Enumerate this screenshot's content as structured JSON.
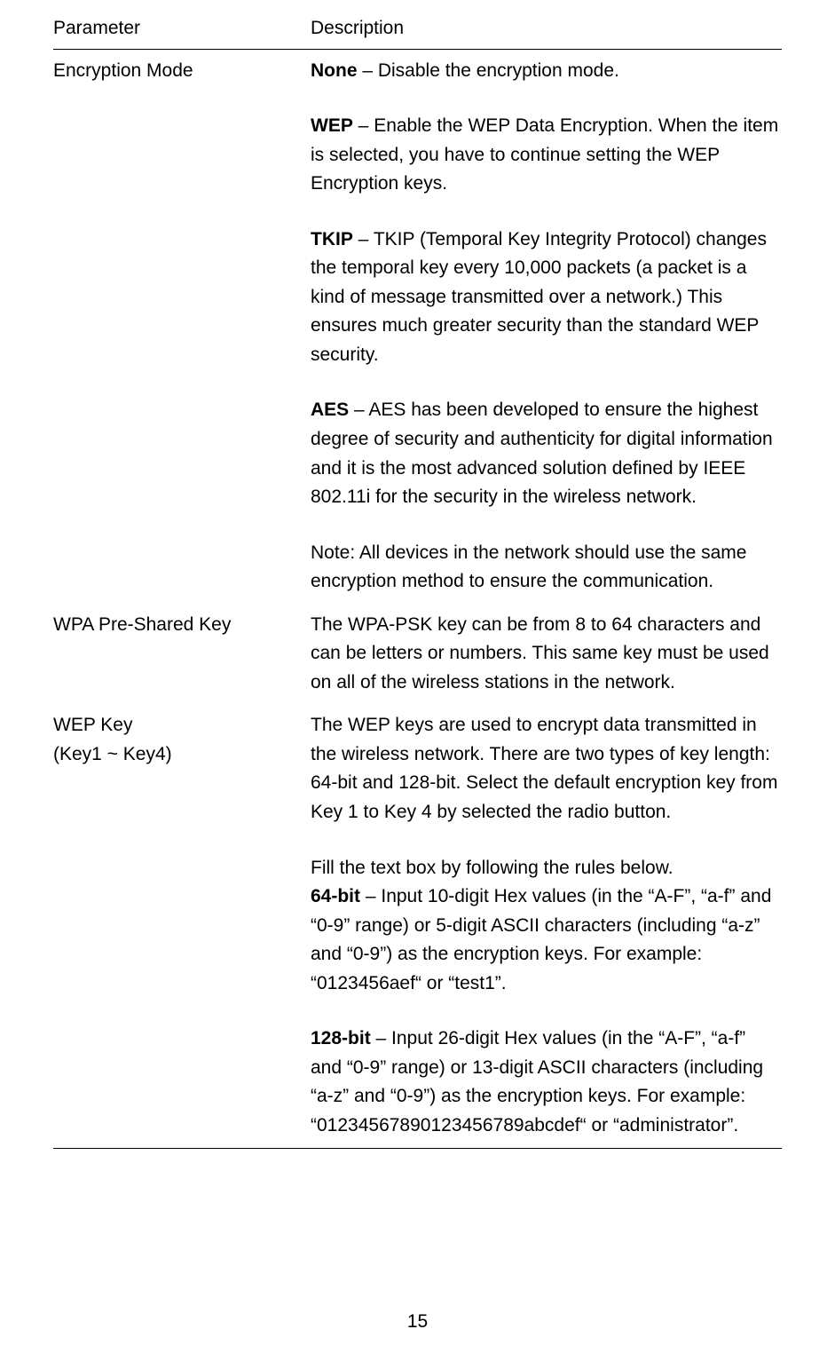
{
  "page_number": "15",
  "columns": {
    "parameter": "Parameter",
    "description": "Description"
  },
  "rows": [
    {
      "param_lines": [
        "Encryption Mode"
      ],
      "desc": [
        {
          "bold": "None",
          "rest": " – Disable the encryption mode."
        },
        {
          "bold": "WEP",
          "rest": " – Enable the WEP Data Encryption. When the item is selected, you have to continue setting the WEP Encryption keys."
        },
        {
          "bold": "TKIP",
          "rest": " – TKIP (Temporal Key Integrity Protocol) changes the temporal key every 10,000 packets (a packet is a kind of message transmitted over a network.) This ensures much greater security than the standard WEP security."
        },
        {
          "bold": "AES",
          "rest": " – AES has been developed to ensure the highest degree of security and authenticity for digital information and it is the most advanced solution defined by IEEE 802.11i for the security in the wireless network."
        },
        {
          "bold": "",
          "rest": "Note: All devices in the network should use the same encryption method to ensure the communication."
        }
      ]
    },
    {
      "param_lines": [
        "WPA Pre-Shared Key"
      ],
      "desc": [
        {
          "bold": "",
          "rest": "The WPA-PSK key can be from 8 to 64 characters and can be letters or numbers. This same key must be used on all of the wireless stations in the network."
        }
      ]
    },
    {
      "param_lines": [
        "WEP Key",
        "(Key1 ~ Key4)"
      ],
      "desc": [
        {
          "bold": "",
          "rest": "The WEP keys are used to encrypt data transmitted in the wireless network. There are two types of key length: 64-bit and 128-bit. Select the default encryption key from Key 1 to Key 4 by selected the radio button."
        },
        {
          "bold": "",
          "rest": "Fill the text box by following the rules below.",
          "next_bold": "64-bit",
          "next_rest": " – Input 10-digit Hex values (in the “A-F”, “a-f” and “0-9” range) or 5-digit ASCII characters (including “a-z” and “0-9”) as the encryption keys. For example: “0123456aef“ or “test1”."
        },
        {
          "bold": "128-bit",
          "rest": " – Input 26-digit Hex values (in the “A-F”, “a-f” and “0-9” range) or 13-digit ASCII characters (including “a-z” and “0-9”) as the encryption keys. For example: “01234567890123456789abcdef“ or “administrator”."
        }
      ]
    }
  ]
}
